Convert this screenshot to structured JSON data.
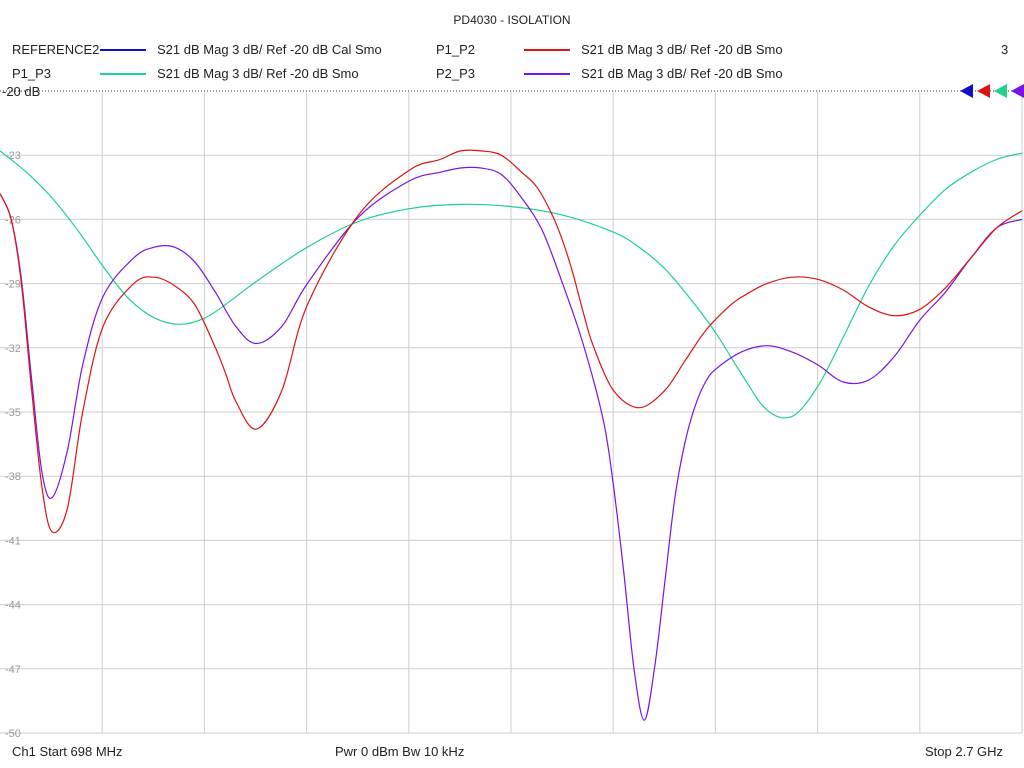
{
  "chart_data": {
    "type": "line",
    "title": "PD4030 - ISOLATION",
    "xlabel": "",
    "ylabel": "",
    "x_start_mhz": 698,
    "x_stop_mhz": 2700,
    "xlim": [
      698,
      2700
    ],
    "ylim": [
      -50,
      -20
    ],
    "y_ticks": [
      -23,
      -26,
      -29,
      -32,
      -35,
      -38,
      -41,
      -44,
      -47,
      -50
    ],
    "reference_label": "-20 dB",
    "grid": true,
    "legend_placement": "top",
    "series": [
      {
        "name": "REFERENCE2",
        "desc": "S21  dB Mag  3 dB/ Ref -20 dB  Cal Smo",
        "color": "#1010c8",
        "x": [],
        "y": []
      },
      {
        "name": "P1_P2",
        "desc": "S21  dB Mag  3 dB/ Ref -20 dB  Smo",
        "color": "#dc1414",
        "x": [
          698,
          720,
          740,
          760,
          780,
          800,
          830,
          860,
          900,
          960,
          1000,
          1040,
          1080,
          1120,
          1140,
          1160,
          1200,
          1250,
          1300,
          1400,
          1500,
          1560,
          1600,
          1640,
          1680,
          1720,
          1750,
          1780,
          1800,
          1820,
          1840,
          1860,
          1900,
          1950,
          2000,
          2040,
          2080,
          2120,
          2140,
          2160,
          2200,
          2250,
          2300,
          2350,
          2400,
          2450,
          2500,
          2550,
          2600,
          2650,
          2700
        ],
        "y": [
          -24.8,
          -26.0,
          -29.0,
          -34.0,
          -38.5,
          -40.6,
          -39.5,
          -35.0,
          -31.0,
          -29.0,
          -28.7,
          -29.1,
          -30.0,
          -32.0,
          -33.2,
          -34.5,
          -35.8,
          -34.0,
          -30.0,
          -25.8,
          -23.7,
          -23.2,
          -22.8,
          -22.8,
          -23.0,
          -23.8,
          -24.5,
          -25.8,
          -27.0,
          -28.5,
          -30.3,
          -31.9,
          -34.0,
          -34.8,
          -34.0,
          -32.6,
          -31.2,
          -30.2,
          -29.8,
          -29.5,
          -29.0,
          -28.7,
          -28.8,
          -29.3,
          -30.1,
          -30.5,
          -30.2,
          -29.2,
          -27.8,
          -26.4,
          -25.6
        ]
      },
      {
        "name": "P1_P3",
        "desc": "S21  dB Mag  3 dB/ Ref -20 dB  Smo",
        "color": "#1ed28c",
        "x": [
          698,
          750,
          800,
          850,
          900,
          950,
          1000,
          1050,
          1100,
          1150,
          1200,
          1300,
          1400,
          1500,
          1600,
          1700,
          1800,
          1900,
          1950,
          2000,
          2050,
          2100,
          2150,
          2200,
          2250,
          2300,
          2350,
          2400,
          2450,
          2500,
          2550,
          2600,
          2650,
          2700
        ],
        "y": [
          -22.8,
          -23.8,
          -25.0,
          -26.5,
          -28.2,
          -29.7,
          -30.6,
          -30.9,
          -30.6,
          -29.8,
          -28.9,
          -27.3,
          -26.1,
          -25.5,
          -25.3,
          -25.4,
          -25.8,
          -26.6,
          -27.3,
          -28.3,
          -29.7,
          -31.3,
          -33.2,
          -34.9,
          -35.2,
          -33.8,
          -31.5,
          -29.1,
          -27.2,
          -25.8,
          -24.6,
          -23.8,
          -23.2,
          -22.9
        ]
      },
      {
        "name": "P2_P3",
        "desc": "S21  dB Mag  3 dB/ Ref -20 dB  Smo",
        "color": "#7814e6",
        "x": [
          698,
          720,
          740,
          760,
          780,
          800,
          830,
          860,
          900,
          960,
          1000,
          1040,
          1080,
          1120,
          1160,
          1200,
          1250,
          1300,
          1400,
          1500,
          1560,
          1600,
          1640,
          1680,
          1720,
          1760,
          1800,
          1840,
          1880,
          1900,
          1920,
          1940,
          1960,
          1980,
          2000,
          2020,
          2040,
          2060,
          2080,
          2100,
          2150,
          2200,
          2250,
          2300,
          2350,
          2400,
          2450,
          2500,
          2550,
          2600,
          2650,
          2700
        ],
        "y": [
          -24.8,
          -26.0,
          -28.8,
          -33.5,
          -37.8,
          -39.0,
          -36.8,
          -32.8,
          -29.6,
          -27.8,
          -27.3,
          -27.3,
          -28.0,
          -29.4,
          -31.0,
          -31.8,
          -31.0,
          -29.0,
          -25.9,
          -24.2,
          -23.8,
          -23.6,
          -23.6,
          -23.9,
          -25.0,
          -26.5,
          -29.0,
          -31.8,
          -35.4,
          -38.5,
          -42.5,
          -47.0,
          -49.4,
          -47.0,
          -43.0,
          -39.0,
          -36.4,
          -34.7,
          -33.6,
          -33.0,
          -32.2,
          -31.9,
          -32.2,
          -32.8,
          -33.6,
          -33.5,
          -32.4,
          -30.7,
          -29.4,
          -27.8,
          -26.4,
          -26.0
        ]
      }
    ],
    "markers": [
      {
        "color": "#1010c8"
      },
      {
        "color": "#dc1414"
      },
      {
        "color": "#1ed28c"
      },
      {
        "color": "#7814e6"
      }
    ],
    "marker_count_label": "3",
    "footer": {
      "left": "Ch1  Start  698 MHz",
      "center": "Pwr  0 dBm  Bw  10 kHz",
      "right": "Stop  2.7 GHz"
    }
  }
}
